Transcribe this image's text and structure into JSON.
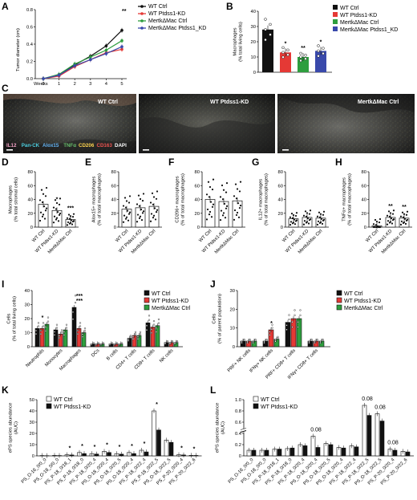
{
  "panels": {
    "A": {
      "letter": "A",
      "ylabel": "Tumor diameter (cm)",
      "xlabel": "Weeks",
      "sig": "**",
      "chart_data": {
        "type": "line",
        "x": [
          0,
          1,
          2,
          3,
          4,
          5
        ],
        "ylim": [
          0,
          0.8
        ],
        "yticks": [
          "0.0",
          "0.2",
          "0.4",
          "0.6",
          "0.8"
        ],
        "series": [
          {
            "name": "WT Ctrl",
            "color": "#111111",
            "values": [
              0,
              0.04,
              0.16,
              0.26,
              0.38,
              0.56
            ]
          },
          {
            "name": "WT Ptdss1-KD",
            "color": "#e53935",
            "values": [
              0,
              0.03,
              0.14,
              0.22,
              0.3,
              0.34
            ]
          },
          {
            "name": "MertkΔMac Ctrl",
            "color": "#2e9e3e",
            "values": [
              0,
              0.05,
              0.17,
              0.25,
              0.33,
              0.44
            ]
          },
          {
            "name": "MertkΔMac Ptdss1_KD",
            "color": "#3949ab",
            "values": [
              0,
              0.04,
              0.15,
              0.22,
              0.29,
              0.37
            ]
          }
        ]
      }
    },
    "B": {
      "letter": "B",
      "ylabel": "Macrophages\n(% total living cells)",
      "sigs": [
        "*",
        "**",
        "*"
      ],
      "chart_data": {
        "type": "bar",
        "categories": [
          "WT Ctrl",
          "WT Ptdss1-KD",
          "MertkΔMac Ctrl",
          "MertkΔMac Ptdss1_KD"
        ],
        "values": [
          28,
          13,
          10,
          14
        ],
        "colors": [
          "#111111",
          "#e53935",
          "#2e9e3e",
          "#3949ab"
        ],
        "ylim": [
          0,
          40
        ],
        "yticks": [
          "0",
          "10",
          "20",
          "30",
          "40"
        ]
      }
    },
    "C": {
      "letter": "C",
      "images": [
        "WT Ctrl",
        "WT Ptdss1-KD",
        "MertkΔMac Ctrl"
      ],
      "stain_legend": [
        {
          "text": "IL12",
          "color": "#f2a1c4"
        },
        {
          "text": "Pan-CK",
          "color": "#4dd0e1"
        },
        {
          "text": "Alox15",
          "color": "#64b5f6"
        },
        {
          "text": "TNFα",
          "color": "#66bb6a"
        },
        {
          "text": "CD206",
          "color": "#ffd54f"
        },
        {
          "text": "CD163",
          "color": "#ef5350"
        },
        {
          "text": "DAPI",
          "color": "#ffffff"
        }
      ]
    },
    "small_panels": [
      {
        "letter": "D",
        "ylabel": "Macrophages\n(% total stromal cells)",
        "sig": [
          "",
          "*",
          "***"
        ],
        "chart_data": {
          "type": "bar",
          "categories": [
            "WT Ctrl",
            "WT Ptdss1-KD",
            "MertkΔMac Ctrl"
          ],
          "values": [
            33,
            24,
            11
          ],
          "ylim": [
            0,
            80
          ],
          "yticks": [
            "0",
            "20",
            "40",
            "60",
            "80"
          ]
        }
      },
      {
        "letter": "E",
        "ylabel": "Alox15+ macrophages\n(% of total macrophages)",
        "sig": [
          "",
          "",
          ""
        ],
        "chart_data": {
          "type": "bar",
          "categories": [
            "WT Ctrl",
            "WT Ptdss1-KD",
            "MertkΔMac Ctrl"
          ],
          "values": [
            26,
            28,
            30
          ],
          "ylim": [
            0,
            80
          ],
          "yticks": [
            "0",
            "20",
            "40",
            "60",
            "80"
          ]
        }
      },
      {
        "letter": "F",
        "ylabel": "CD206+ macrophages\n(% of total macrophages)",
        "sig": [
          "",
          "",
          ""
        ],
        "chart_data": {
          "type": "bar",
          "categories": [
            "WT Ctrl",
            "WT Ptdss1-KD",
            "MertkΔMac Ctrl"
          ],
          "values": [
            40,
            37,
            38
          ],
          "ylim": [
            0,
            80
          ],
          "yticks": [
            "0",
            "20",
            "40",
            "60",
            "80"
          ]
        }
      },
      {
        "letter": "G",
        "ylabel": "IL12+ macrophages\n(% of total macrophages)",
        "sig": [
          "",
          "",
          ""
        ],
        "chart_data": {
          "type": "bar",
          "categories": [
            "WT Ctrl",
            "WT Ptdss1-KD",
            "MertkΔMac Ctrl"
          ],
          "values": [
            12,
            14,
            13
          ],
          "ylim": [
            0,
            80
          ],
          "yticks": [
            "0",
            "20",
            "40",
            "60",
            "80"
          ]
        }
      },
      {
        "letter": "H",
        "ylabel": "TNFα+ macrophages\n(% of total macrophages)",
        "sig": [
          "",
          "**",
          "**"
        ],
        "chart_data": {
          "type": "bar",
          "categories": [
            "WT Ctrl",
            "WT Ptdss1-KD",
            "MertkΔMac Ctrl"
          ],
          "values": [
            2,
            14,
            13
          ],
          "ylim": [
            0,
            80
          ],
          "yticks": [
            "0",
            "20",
            "40",
            "60",
            "80"
          ]
        }
      }
    ],
    "I": {
      "letter": "I",
      "ylabel": "Cells\n(% of total living cells)",
      "legend": [
        "WT Ctrl",
        "WT Ptdss1-KD",
        "MertkΔMac Ctrl"
      ],
      "colors": [
        "#111111",
        "#e53935",
        "#2e9e3e"
      ],
      "chart_data": {
        "type": "bar",
        "categories": [
          "Neutrophils",
          "Monocytes",
          "Macrophages",
          "DCs",
          "B cells",
          "CD4+ T cells",
          "CD8+ T cells",
          "NK cells"
        ],
        "ylim": [
          0,
          40
        ],
        "yticks": [
          "0",
          "10",
          "20",
          "30",
          "40"
        ],
        "series": [
          {
            "name": "WT Ctrl",
            "values": [
              13,
              12,
              28,
              2,
              2,
              6,
              17,
              3
            ]
          },
          {
            "name": "WT Ptdss1-KD",
            "values": [
              13,
              9,
              13,
              2,
              2,
              8,
              14,
              3
            ]
          },
          {
            "name": "MertkΔMac Ctrl",
            "values": [
              16,
              12,
              10,
              2,
              2,
              8,
              15,
              3
            ]
          }
        ],
        "sigs": [
          "*",
          "",
          "***\n***",
          "",
          "",
          "",
          "",
          ""
        ]
      }
    },
    "J": {
      "letter": "J",
      "ylabel": "Cells\n(% of parent population)",
      "legend": [
        "WT Ctrl",
        "WT Ptdss1-KD",
        "MertkΔMac Ctrl"
      ],
      "colors": [
        "#111111",
        "#e53935",
        "#2e9e3e"
      ],
      "chart_data": {
        "type": "bar",
        "categories": [
          "PRF+ NK cells",
          "IFNγ+ NK cells",
          "PRF+ CD8+ T cells",
          "IFNγ+ CD8+ T cells"
        ],
        "ylim": [
          0,
          30
        ],
        "yticks": [
          "0",
          "10",
          "20",
          "30"
        ],
        "series": [
          {
            "name": "WT Ctrl",
            "values": [
              3,
              3,
              13,
              3
            ]
          },
          {
            "name": "WT Ptdss1-KD",
            "values": [
              3,
              9,
              15,
              3
            ]
          },
          {
            "name": "MertkΔMac Ctrl",
            "values": [
              3,
              4,
              15,
              3
            ]
          }
        ],
        "sigs": [
          "",
          "*",
          "",
          ""
        ]
      }
    },
    "K": {
      "letter": "K",
      "ylabel": "ePS species abundance\n(AUC)",
      "legend": [
        "WT Ctrl",
        "WT Ptdss1-KD"
      ],
      "chart_data": {
        "type": "bar",
        "categories": [
          "PS_O-16_0/0_0",
          "PS_O-18_0/0_0",
          "PS_P-18_0/18_1",
          "PS_P-18_0/18_0",
          "PS_P-18_0/20_4",
          "PS_O-18_0/20_4",
          "PS_O-18_0/20_5",
          "PS_O-18_0/20_4",
          "PS_P-18_0/22_4",
          "PS_P-18_0/22_5",
          "PS_O-18_0/22_5",
          "PS_P-20_0/20_4",
          "PS_P-20_0/22_6"
        ],
        "ylim": [
          0,
          50
        ],
        "yticks": [
          "0",
          "10",
          "20",
          "30",
          "40",
          "50"
        ],
        "series": [
          {
            "name": "WT Ctrl",
            "values": [
              0.3,
              0.4,
              1,
              3,
              2,
              4,
              2,
              3,
              5,
              40,
              14,
              1,
              0.5
            ]
          },
          {
            "name": "WT Ptdss1-KD",
            "values": [
              0.2,
              0.3,
              0.8,
              2,
              1.6,
              3,
              1.5,
              2,
              3.5,
              23,
              12,
              0.8,
              0.4
            ]
          }
        ],
        "sigs": [
          "",
          "",
          "*",
          "*",
          "*",
          "*",
          "*",
          "*",
          "*",
          "*",
          "",
          "*",
          "*"
        ]
      }
    },
    "L": {
      "letter": "L",
      "ylabel": "ePS species abundance\n(AUC)",
      "legend": [
        "WT Ctrl",
        "WT Ptdss1-KD"
      ],
      "chart_data": {
        "type": "bar",
        "categories": [
          "PS_O-16_0/0_0",
          "PS_O-18_0/0_0",
          "PS_P-18_0/18_1",
          "PS_P-18_0/18_0",
          "PS_P-18_0/20_4",
          "PS_O-18_0/20_4",
          "PS_O-18_0/20_5",
          "PS_O-18_0/20_4",
          "PS_P-18_0/22_4",
          "PS_P-18_0/22_5",
          "PS_O-18_0/22_5",
          "PS_P-20_0/20_4",
          "PS_P-20_0/22_6"
        ],
        "ylim": [
          0,
          1.0
        ],
        "yticks": [
          "0",
          "0.2",
          "0.4",
          "0.6",
          "0.8",
          "1.0"
        ],
        "series": [
          {
            "name": "WT Ctrl",
            "values": [
              0.1,
              0.1,
              0.12,
              0.13,
              0.2,
              0.35,
              0.22,
              0.15,
              0.18,
              0.9,
              0.75,
              0.12,
              0.08
            ]
          },
          {
            "name": "WT Ptdss1-KD",
            "values": [
              0.1,
              0.1,
              0.12,
              0.14,
              0.18,
              0.15,
              0.2,
              0.14,
              0.16,
              0.72,
              0.62,
              0.1,
              0.07
            ]
          }
        ],
        "annotations": [
          "",
          "",
          "",
          "",
          "",
          "0.08",
          "",
          "",
          "",
          "0.08",
          "0.08",
          "0.08",
          ""
        ]
      }
    }
  }
}
